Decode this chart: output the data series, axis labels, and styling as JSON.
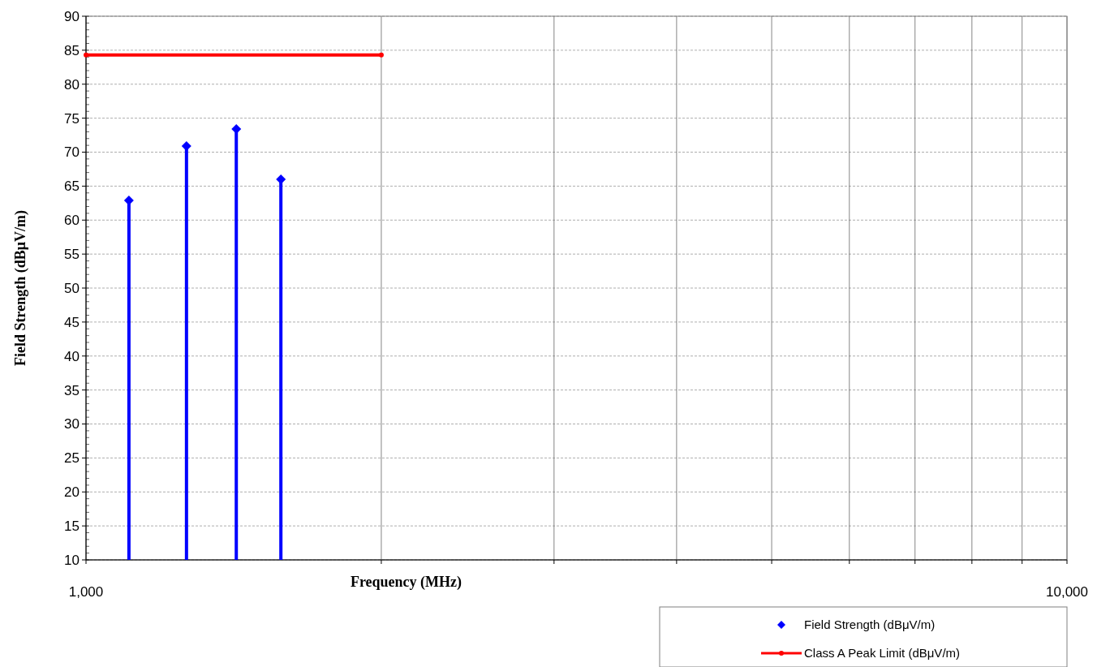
{
  "chart_data": {
    "type": "line",
    "xlabel": "Frequency (MHz)",
    "ylabel": "Field Strength (dBμV/m)",
    "log": "x",
    "grid": true,
    "legend": "bottom right",
    "xlim": [
      1000,
      10000
    ],
    "xticks": [
      {
        "value": 1000,
        "label": "1,000"
      },
      {
        "value": 2000,
        "label": null
      },
      {
        "value": 3000,
        "label": null
      },
      {
        "value": 4000,
        "label": null
      },
      {
        "value": 5000,
        "label": null
      },
      {
        "value": 6000,
        "label": null
      },
      {
        "value": 7000,
        "label": null
      },
      {
        "value": 8000,
        "label": null
      },
      {
        "value": 9000,
        "label": null
      },
      {
        "value": 10000,
        "label": "10,000"
      }
    ],
    "ylim": [
      10,
      90
    ],
    "yticks": [
      10,
      15,
      20,
      25,
      30,
      35,
      40,
      45,
      50,
      55,
      60,
      65,
      70,
      75,
      80,
      85,
      90
    ],
    "series": [
      {
        "name": "Field Strength (dBμV/m)",
        "type": "lollipop",
        "marker": "diamond",
        "color": "#0000ff",
        "x": [
          1106,
          1266,
          1423,
          1580
        ],
        "values": [
          62.9,
          70.9,
          73.4,
          66.0
        ]
      },
      {
        "name": "Class A Peak Limit (dBμV/m)",
        "marker": "circle",
        "color": "#ff0000",
        "x": [
          1000,
          2000
        ],
        "values": [
          84.3,
          84.3
        ]
      }
    ]
  }
}
